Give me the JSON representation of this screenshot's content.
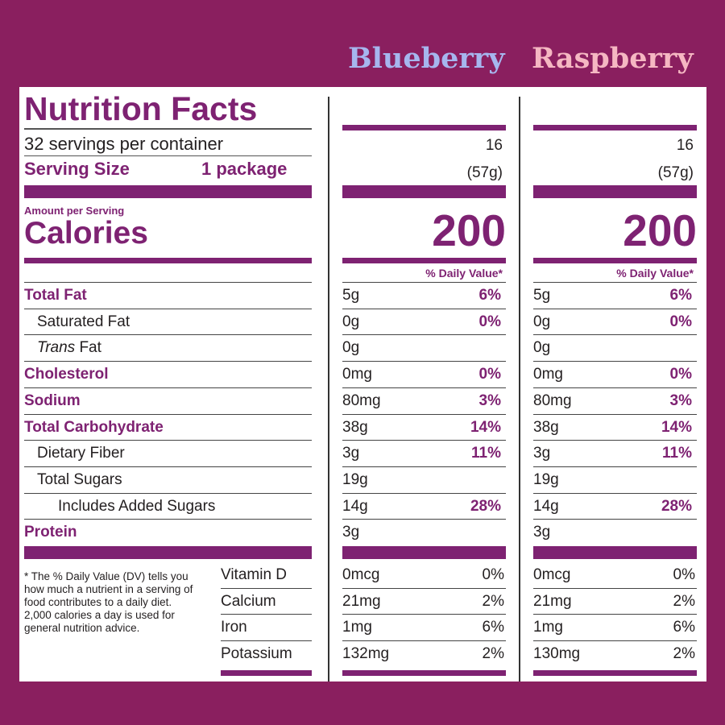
{
  "flavors": {
    "blueberry": "Blueberry",
    "raspberry": "Raspberry"
  },
  "label": {
    "title": "Nutrition Facts",
    "servings_per_container": "32 servings per container",
    "serving_size_label": "Serving Size",
    "serving_size_value": "1 package",
    "amount_per_serving": "Amount per Serving",
    "calories_label": "Calories",
    "daily_value_header": "% Daily Value*",
    "footnote": "* The % Daily Value (DV) tells you how much a nutrient in a serving of food contributes to a daily diet. 2,000 calories a day is used for general nutrition advice."
  },
  "nutrients": [
    {
      "label": "Total Fat",
      "bold": true
    },
    {
      "label": "Saturated Fat"
    },
    {
      "label_italic": "Trans",
      "label_rest": " Fat"
    },
    {
      "label": "Cholesterol",
      "bold": true
    },
    {
      "label": "Sodium",
      "bold": true
    },
    {
      "label": "Total Carbohydrate",
      "bold": true
    },
    {
      "label": "Dietary Fiber"
    },
    {
      "label": "Total Sugars"
    },
    {
      "label": "Includes Added Sugars"
    },
    {
      "label": "Protein",
      "bold": true
    }
  ],
  "minerals": [
    "Vitamin D",
    "Calcium",
    "Iron",
    "Potassium"
  ],
  "columns": [
    {
      "name": "Blueberry",
      "servings": "16",
      "serving_size": "(57g)",
      "calories": "200",
      "nutrients": [
        {
          "amount": "5g",
          "dv": "6%"
        },
        {
          "amount": "0g",
          "dv": "0%"
        },
        {
          "amount": "0g",
          "dv": ""
        },
        {
          "amount": "0mg",
          "dv": "0%"
        },
        {
          "amount": "80mg",
          "dv": "3%"
        },
        {
          "amount": "38g",
          "dv": "14%"
        },
        {
          "amount": "3g",
          "dv": "11%"
        },
        {
          "amount": "19g",
          "dv": ""
        },
        {
          "amount": "14g",
          "dv": "28%"
        },
        {
          "amount": "3g",
          "dv": ""
        }
      ],
      "minerals": [
        {
          "amount": "0mcg",
          "dv": "0%"
        },
        {
          "amount": "21mg",
          "dv": "2%"
        },
        {
          "amount": "1mg",
          "dv": "6%"
        },
        {
          "amount": "132mg",
          "dv": "2%"
        }
      ]
    },
    {
      "name": "Raspberry",
      "servings": "16",
      "serving_size": "(57g)",
      "calories": "200",
      "nutrients": [
        {
          "amount": "5g",
          "dv": "6%"
        },
        {
          "amount": "0g",
          "dv": "0%"
        },
        {
          "amount": "0g",
          "dv": ""
        },
        {
          "amount": "0mg",
          "dv": "0%"
        },
        {
          "amount": "80mg",
          "dv": "3%"
        },
        {
          "amount": "38g",
          "dv": "14%"
        },
        {
          "amount": "3g",
          "dv": "11%"
        },
        {
          "amount": "19g",
          "dv": ""
        },
        {
          "amount": "14g",
          "dv": "28%"
        },
        {
          "amount": "3g",
          "dv": ""
        }
      ],
      "minerals": [
        {
          "amount": "0mcg",
          "dv": "0%"
        },
        {
          "amount": "21mg",
          "dv": "2%"
        },
        {
          "amount": "1mg",
          "dv": "6%"
        },
        {
          "amount": "130mg",
          "dv": "2%"
        }
      ]
    }
  ],
  "colors": {
    "background": "#8a1f5f",
    "label_purple": "#7e2272",
    "blueberry": "#a6b6ee",
    "raspberry": "#f5b7c2"
  }
}
